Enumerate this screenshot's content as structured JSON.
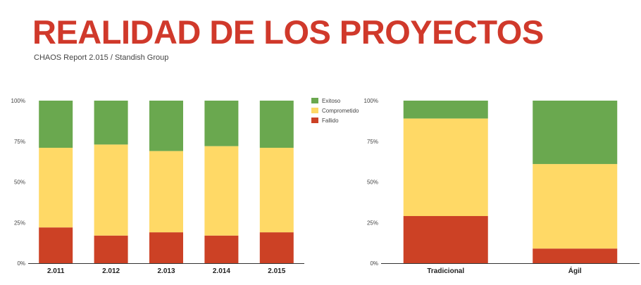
{
  "header": {
    "title": "REALIDAD DE LOS PROYECTOS",
    "subtitle": "CHAOS Report 2.015 / Standish Group",
    "title_color": "#d0392b"
  },
  "colors": {
    "exitoso": "#6aa84f",
    "comprometido": "#ffd966",
    "fallido": "#cc4125"
  },
  "chart_data": [
    {
      "type": "bar",
      "stacked": true,
      "categories": [
        "2.011",
        "2.012",
        "2.013",
        "2.014",
        "2.015"
      ],
      "series": [
        {
          "name": "Exitoso",
          "values": [
            29,
            27,
            31,
            28,
            29
          ]
        },
        {
          "name": "Comprometido",
          "values": [
            49,
            56,
            50,
            55,
            52
          ]
        },
        {
          "name": "Fallido",
          "values": [
            22,
            17,
            19,
            17,
            19
          ]
        }
      ],
      "ylim": [
        0,
        100
      ],
      "yticks": [
        "0%",
        "25%",
        "50%",
        "75%",
        "100%"
      ],
      "legend": "top-right",
      "grid": false
    },
    {
      "type": "bar",
      "stacked": true,
      "categories": [
        "Tradicional",
        "Ágil"
      ],
      "series": [
        {
          "name": "Exitoso",
          "values": [
            11,
            39
          ]
        },
        {
          "name": "Comprometido",
          "values": [
            60,
            52
          ]
        },
        {
          "name": "Fallido",
          "values": [
            29,
            9
          ]
        }
      ],
      "ylim": [
        0,
        100
      ],
      "yticks": [
        "0%",
        "25%",
        "50%",
        "75%",
        "100%"
      ],
      "grid": false
    }
  ]
}
